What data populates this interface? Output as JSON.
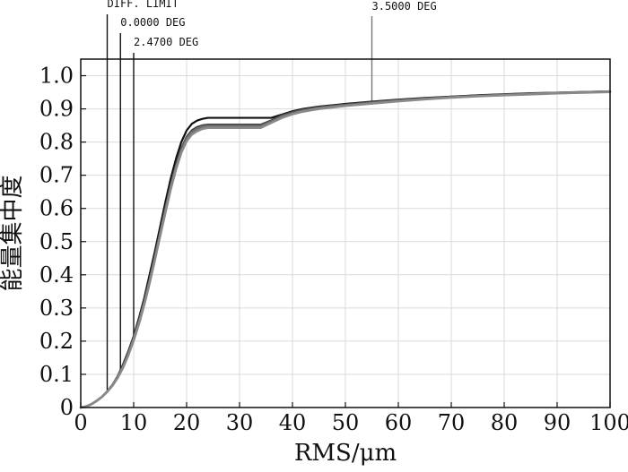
{
  "chart_data": {
    "type": "line",
    "title": "",
    "xlabel": "RMS/μm",
    "ylabel": "能量集中度",
    "xlim": [
      0,
      100
    ],
    "ylim": [
      0,
      1.0
    ],
    "grid": true,
    "x_ticks": [
      0,
      10,
      20,
      30,
      40,
      50,
      60,
      70,
      80,
      90,
      100
    ],
    "y_ticks": [
      0,
      0.1,
      0.2,
      0.3,
      0.4,
      0.5,
      0.6,
      0.7,
      0.8,
      0.9,
      1.0
    ],
    "x_tick_labels": [
      "0",
      "10",
      "20",
      "30",
      "40",
      "50",
      "60",
      "70",
      "80",
      "90",
      "100"
    ],
    "y_tick_labels": [
      "0",
      "0.1",
      "0.2",
      "0.3",
      "0.4",
      "0.5",
      "0.6",
      "0.7",
      "0.8",
      "0.9",
      "1.0"
    ],
    "series": [
      {
        "name": "DIFF. LIMIT",
        "color": "#111111",
        "x": [
          0,
          1,
          2,
          3,
          4,
          5,
          6,
          7,
          8,
          9,
          10,
          11,
          12,
          13,
          14,
          15,
          16,
          17,
          18,
          19,
          20,
          21,
          22,
          23,
          24,
          25,
          28,
          30,
          32,
          34,
          36,
          38,
          40,
          42,
          45,
          50,
          55,
          60,
          65,
          70,
          75,
          80,
          85,
          90,
          95,
          100
        ],
        "y": [
          0,
          0.003,
          0.01,
          0.02,
          0.032,
          0.048,
          0.068,
          0.095,
          0.13,
          0.17,
          0.215,
          0.27,
          0.33,
          0.4,
          0.47,
          0.545,
          0.62,
          0.69,
          0.75,
          0.8,
          0.835,
          0.855,
          0.865,
          0.87,
          0.873,
          0.873,
          0.873,
          0.873,
          0.873,
          0.873,
          0.873,
          0.883,
          0.893,
          0.9,
          0.907,
          0.915,
          0.922,
          0.928,
          0.933,
          0.937,
          0.941,
          0.944,
          0.947,
          0.949,
          0.951,
          0.953
        ]
      },
      {
        "name": "0.0000 DEG",
        "color": "#444444",
        "x": [
          0,
          1,
          2,
          3,
          4,
          5,
          6,
          7,
          8,
          9,
          10,
          11,
          12,
          13,
          14,
          15,
          16,
          17,
          18,
          19,
          20,
          21,
          22,
          23,
          24,
          25,
          28,
          30,
          32,
          34,
          36,
          38,
          40,
          42,
          45,
          50,
          55,
          60,
          65,
          70,
          75,
          80,
          85,
          90,
          95,
          100
        ],
        "y": [
          0,
          0.003,
          0.01,
          0.02,
          0.032,
          0.048,
          0.068,
          0.093,
          0.125,
          0.165,
          0.21,
          0.262,
          0.32,
          0.385,
          0.455,
          0.528,
          0.6,
          0.67,
          0.73,
          0.78,
          0.815,
          0.835,
          0.845,
          0.85,
          0.852,
          0.852,
          0.852,
          0.852,
          0.852,
          0.852,
          0.865,
          0.88,
          0.89,
          0.897,
          0.905,
          0.913,
          0.92,
          0.926,
          0.931,
          0.936,
          0.94,
          0.943,
          0.946,
          0.948,
          0.95,
          0.952
        ]
      },
      {
        "name": "2.4700 DEG",
        "color": "#707070",
        "x": [
          0,
          1,
          2,
          3,
          4,
          5,
          6,
          7,
          8,
          9,
          10,
          11,
          12,
          13,
          14,
          15,
          16,
          17,
          18,
          19,
          20,
          21,
          22,
          23,
          24,
          25,
          28,
          30,
          32,
          34,
          36,
          38,
          40,
          42,
          45,
          50,
          55,
          60,
          65,
          70,
          75,
          80,
          85,
          90,
          95,
          100
        ],
        "y": [
          0,
          0.003,
          0.01,
          0.02,
          0.032,
          0.048,
          0.067,
          0.092,
          0.123,
          0.162,
          0.207,
          0.258,
          0.316,
          0.38,
          0.45,
          0.523,
          0.595,
          0.665,
          0.725,
          0.775,
          0.81,
          0.83,
          0.84,
          0.846,
          0.848,
          0.848,
          0.848,
          0.848,
          0.848,
          0.848,
          0.862,
          0.877,
          0.887,
          0.895,
          0.903,
          0.911,
          0.918,
          0.925,
          0.93,
          0.935,
          0.939,
          0.942,
          0.945,
          0.948,
          0.95,
          0.952
        ]
      },
      {
        "name": "3.5000 DEG",
        "color": "#8a8a8a",
        "x": [
          0,
          1,
          2,
          3,
          4,
          5,
          6,
          7,
          8,
          9,
          10,
          11,
          12,
          13,
          14,
          15,
          16,
          17,
          18,
          19,
          20,
          21,
          22,
          23,
          24,
          25,
          28,
          30,
          32,
          34,
          36,
          38,
          40,
          42,
          45,
          50,
          55,
          60,
          65,
          70,
          75,
          80,
          85,
          90,
          95,
          100
        ],
        "y": [
          0,
          0.003,
          0.01,
          0.02,
          0.032,
          0.047,
          0.066,
          0.09,
          0.12,
          0.158,
          0.202,
          0.252,
          0.31,
          0.374,
          0.444,
          0.517,
          0.588,
          0.658,
          0.718,
          0.768,
          0.803,
          0.823,
          0.833,
          0.84,
          0.843,
          0.843,
          0.843,
          0.843,
          0.843,
          0.843,
          0.858,
          0.873,
          0.884,
          0.892,
          0.9,
          0.909,
          0.916,
          0.923,
          0.929,
          0.934,
          0.938,
          0.941,
          0.944,
          0.947,
          0.949,
          0.951
        ]
      }
    ],
    "annotations": [
      {
        "label": "DIFF. LIMIT",
        "x": 5
      },
      {
        "label": "0.0000 DEG",
        "x": 7.5
      },
      {
        "label": "2.4700 DEG",
        "x": 10
      },
      {
        "label": "3.5000 DEG",
        "x": 55
      }
    ]
  }
}
